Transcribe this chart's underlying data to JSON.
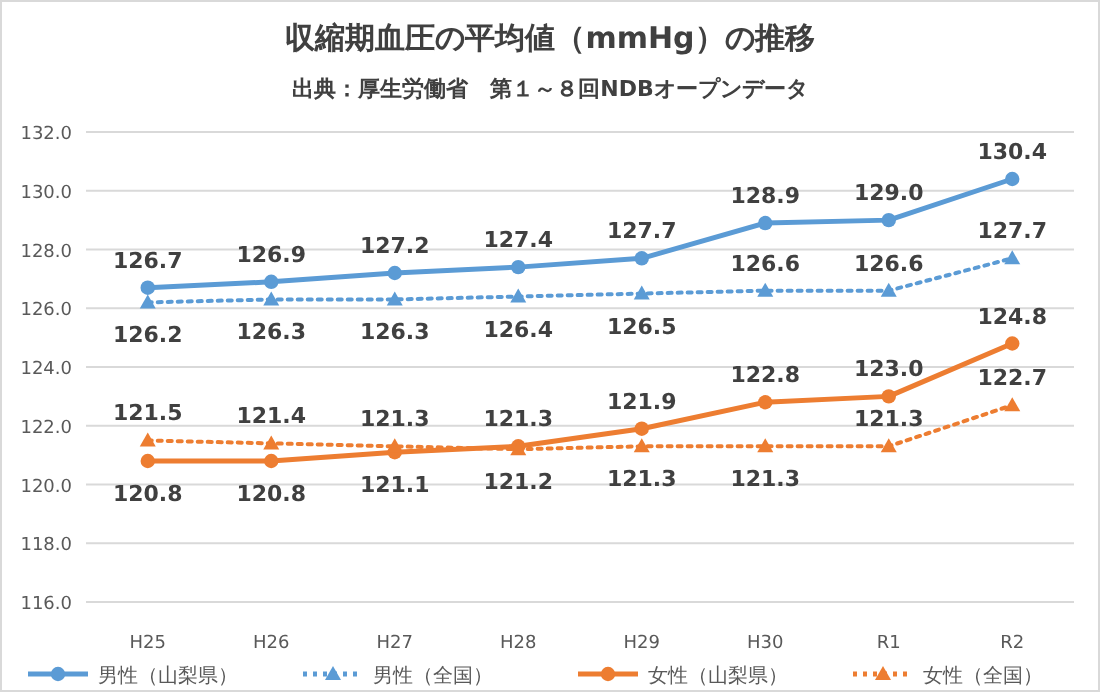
{
  "chart_data": {
    "type": "line",
    "title": "収縮期血圧の平均値（mmHg）の推移",
    "subtitle": "出典：厚生労働省　第１～８回NDBオープンデータ",
    "categories": [
      "H25",
      "H26",
      "H27",
      "H28",
      "H29",
      "H30",
      "R1",
      "R2"
    ],
    "ylim": [
      116,
      132
    ],
    "yticks": [
      {
        "value": 116,
        "label": "116.0"
      },
      {
        "value": 118,
        "label": "118.0"
      },
      {
        "value": 120,
        "label": "120.0"
      },
      {
        "value": 122,
        "label": "122.0"
      },
      {
        "value": 124,
        "label": "124.0"
      },
      {
        "value": 126,
        "label": "126.0"
      },
      {
        "value": 128,
        "label": "128.0"
      },
      {
        "value": 130,
        "label": "130.0"
      },
      {
        "value": 132,
        "label": "132.0"
      }
    ],
    "grid": "y",
    "legend": "bottom",
    "data_labels": true,
    "series": [
      {
        "name": "男性（山梨県）",
        "color": "#5b9bd5",
        "marker": "circle",
        "line_style": "solid",
        "values": [
          126.7,
          126.9,
          127.2,
          127.4,
          127.7,
          128.9,
          129.0,
          130.4
        ],
        "value_labels": [
          "126.7",
          "126.9",
          "127.2",
          "127.4",
          "127.7",
          "128.9",
          "129.0",
          "130.4"
        ]
      },
      {
        "name": "男性（全国）",
        "color": "#5b9bd5",
        "marker": "triangle",
        "line_style": "dotted",
        "values": [
          126.2,
          126.3,
          126.3,
          126.4,
          126.5,
          126.6,
          126.6,
          127.7
        ],
        "value_labels": [
          "126.2",
          "126.3",
          "126.3",
          "126.4",
          "126.5",
          "126.6",
          "126.6",
          "127.7"
        ]
      },
      {
        "name": "女性（山梨県）",
        "color": "#ed7d31",
        "marker": "circle",
        "line_style": "solid",
        "values": [
          120.8,
          120.8,
          121.1,
          121.3,
          121.9,
          122.8,
          123.0,
          124.8
        ],
        "value_labels": [
          "120.8",
          "120.8",
          "121.1",
          "121.3",
          "121.9",
          "122.8",
          "123.0",
          "124.8"
        ]
      },
      {
        "name": "女性（全国）",
        "color": "#ed7d31",
        "marker": "triangle",
        "line_style": "dotted",
        "values": [
          121.5,
          121.4,
          121.3,
          121.2,
          121.3,
          121.3,
          121.3,
          122.7
        ],
        "value_labels": [
          "121.5",
          "121.4",
          "121.3",
          "121.2",
          "121.3",
          "121.3",
          "121.3",
          "122.7"
        ]
      }
    ]
  }
}
